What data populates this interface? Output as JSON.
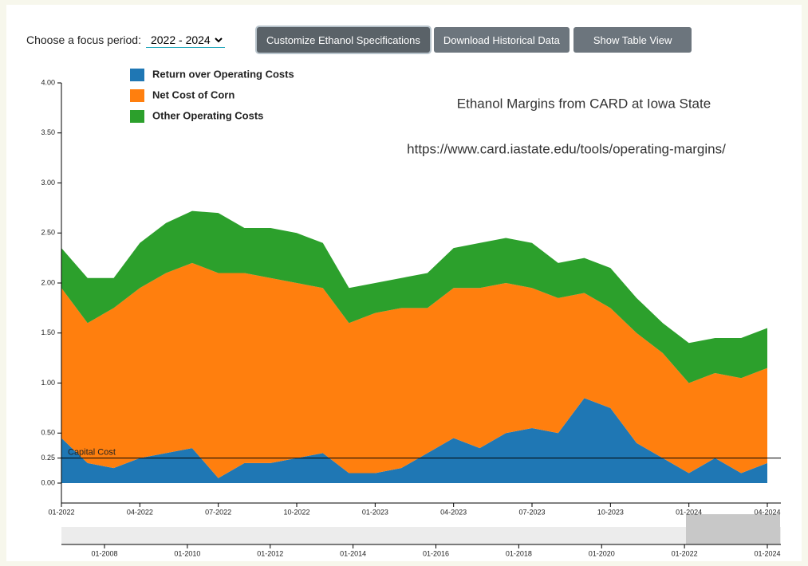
{
  "controls": {
    "focus_label": "Choose a focus period:",
    "focus_value": "2022 - 2024",
    "buttons": [
      "Customize Ethanol Specifications",
      "Download Historical Data",
      "Show Table View"
    ]
  },
  "chart_data": {
    "type": "stacked-area",
    "annotations": [
      "Ethanol Margins from CARD at Iowa State",
      "https://www.card.iastate.edu/tools/operating-margins/"
    ],
    "categories": [
      "01-2022",
      "02-2022",
      "03-2022",
      "04-2022",
      "05-2022",
      "06-2022",
      "07-2022",
      "08-2022",
      "09-2022",
      "10-2022",
      "11-2022",
      "12-2022",
      "01-2023",
      "02-2023",
      "03-2023",
      "04-2023",
      "05-2023",
      "06-2023",
      "07-2023",
      "08-2023",
      "09-2023",
      "10-2023",
      "11-2023",
      "12-2023",
      "01-2024",
      "02-2024",
      "03-2024",
      "04-2024"
    ],
    "xticks": [
      "01-2022",
      "04-2022",
      "07-2022",
      "10-2022",
      "01-2023",
      "04-2023",
      "07-2023",
      "10-2023",
      "01-2024",
      "04-2024"
    ],
    "series": [
      {
        "name": "Return over Operating Costs",
        "color": "#1f77b4",
        "values": [
          0.45,
          0.2,
          0.15,
          0.25,
          0.3,
          0.35,
          0.05,
          0.2,
          0.2,
          0.25,
          0.3,
          0.1,
          0.1,
          0.15,
          0.3,
          0.45,
          0.35,
          0.5,
          0.55,
          0.5,
          0.85,
          0.75,
          0.4,
          0.25,
          0.1,
          0.25,
          0.1,
          0.2
        ]
      },
      {
        "name": "Net Cost of Corn",
        "color": "#ff7f0e",
        "values": [
          1.5,
          1.4,
          1.6,
          1.7,
          1.8,
          1.85,
          2.05,
          1.9,
          1.85,
          1.75,
          1.65,
          1.5,
          1.6,
          1.6,
          1.45,
          1.5,
          1.6,
          1.5,
          1.4,
          1.35,
          1.05,
          1.0,
          1.1,
          1.05,
          0.9,
          0.85,
          0.95,
          0.95
        ]
      },
      {
        "name": "Other Operating Costs",
        "color": "#2ca02c",
        "values": [
          0.4,
          0.45,
          0.3,
          0.45,
          0.5,
          0.52,
          0.6,
          0.45,
          0.5,
          0.5,
          0.45,
          0.35,
          0.3,
          0.3,
          0.35,
          0.4,
          0.45,
          0.45,
          0.45,
          0.35,
          0.35,
          0.4,
          0.35,
          0.3,
          0.4,
          0.35,
          0.4,
          0.4
        ]
      }
    ],
    "ylim": [
      0,
      4
    ],
    "yticks": [
      {
        "value": 0,
        "label": "0.00"
      },
      {
        "value": 0.25,
        "label": "0.25"
      },
      {
        "value": 0.5,
        "label": "0.50"
      },
      {
        "value": 1,
        "label": "1.00"
      },
      {
        "value": 1.5,
        "label": "1.50"
      },
      {
        "value": 2,
        "label": "2.00"
      },
      {
        "value": 2.5,
        "label": "2.50"
      },
      {
        "value": 3,
        "label": "3.00"
      },
      {
        "value": 3.5,
        "label": "3.50"
      },
      {
        "value": 4,
        "label": "4.00"
      }
    ],
    "reference_line": {
      "label": "Capital Cost",
      "value": 0.25,
      "color": "#000000"
    },
    "navigator_ticks": [
      "01-2008",
      "01-2010",
      "01-2012",
      "01-2014",
      "01-2016",
      "01-2018",
      "01-2020",
      "01-2022",
      "01-2024"
    ]
  }
}
